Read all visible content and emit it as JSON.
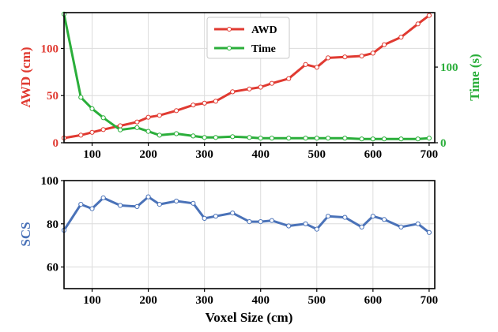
{
  "chart_data": [
    {
      "type": "line",
      "x": [
        50,
        80,
        100,
        120,
        150,
        180,
        200,
        220,
        250,
        280,
        300,
        320,
        350,
        380,
        400,
        420,
        450,
        480,
        500,
        520,
        550,
        580,
        600,
        620,
        650,
        680,
        700
      ],
      "series": [
        {
          "name": "AWD",
          "axis": "left",
          "color": "#e03a31",
          "values": [
            5,
            8,
            11,
            14,
            18,
            22,
            27,
            29,
            34,
            40,
            42,
            44,
            54,
            57,
            59,
            63,
            68,
            83,
            80,
            90,
            91,
            92,
            95,
            104,
            112,
            126,
            135
          ]
        },
        {
          "name": "Time",
          "axis": "right",
          "color": "#2aae3a",
          "values": [
            170,
            60,
            45,
            33,
            17,
            20,
            15,
            10,
            12,
            9,
            7,
            7,
            8,
            7,
            6,
            6,
            6,
            6,
            6,
            6,
            6,
            5,
            5,
            5,
            5,
            5,
            6
          ]
        }
      ],
      "xlim": [
        50,
        710
      ],
      "x_ticks": [
        100,
        200,
        300,
        400,
        500,
        600,
        700
      ],
      "ylabel": "AWD (cm)",
      "ylim": [
        0,
        138
      ],
      "y_ticks": [
        0,
        50,
        100
      ],
      "y2label": "Time (s)",
      "y2lim": [
        0,
        172
      ],
      "y2_ticks": [
        0,
        100
      ],
      "grid": true,
      "legend": "upper-center"
    },
    {
      "type": "line",
      "x": [
        50,
        80,
        100,
        120,
        150,
        180,
        200,
        220,
        250,
        280,
        300,
        320,
        350,
        380,
        400,
        420,
        450,
        480,
        500,
        520,
        550,
        580,
        600,
        620,
        650,
        680,
        700
      ],
      "series": [
        {
          "color": "#4a72b8",
          "values": [
            77,
            89,
            87,
            92,
            88.5,
            88,
            92.5,
            89,
            90.5,
            89.5,
            82.5,
            83.5,
            85,
            81,
            81,
            81.5,
            79,
            80,
            77.5,
            83.5,
            83,
            78.5,
            83.5,
            82,
            78.5,
            80,
            76
          ]
        }
      ],
      "xlim": [
        50,
        710
      ],
      "x_ticks": [
        100,
        200,
        300,
        400,
        500,
        600,
        700
      ],
      "xlabel": "Voxel Size (cm)",
      "ylabel": "SCS",
      "ylim": [
        50,
        100
      ],
      "y_ticks": [
        60,
        80,
        100
      ],
      "grid": true
    }
  ]
}
